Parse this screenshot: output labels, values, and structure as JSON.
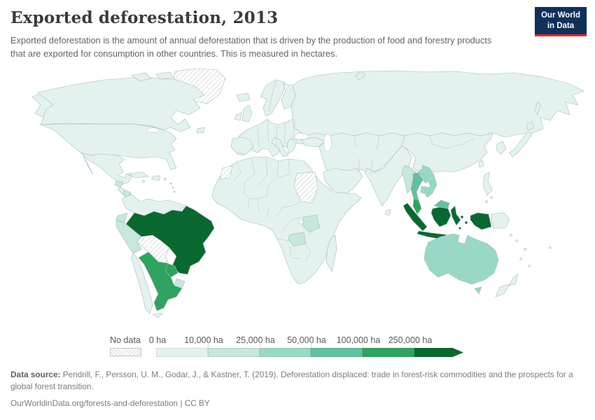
{
  "header": {
    "title": "Exported deforestation, 2013",
    "subtitle": "Exported deforestation is the amount of annual deforestation that is driven by the production of food and forestry products that are exported for consumption in other countries. This is measured in hectares.",
    "logo": {
      "line1": "Our World",
      "line2": "in Data",
      "bg_color": "#10305a",
      "accent_color": "#e0282e"
    }
  },
  "chart_data": {
    "type": "choropleth_map",
    "title": "Exported deforestation, 2013",
    "unit": "hectares",
    "legend": {
      "no_data_label": "No data",
      "stops": [
        "0 ha",
        "10,000 ha",
        "25,000 ha",
        "50,000 ha",
        "100,000 ha",
        "250,000 ha"
      ],
      "bin_colors": [
        "#e3f2ee",
        "#c6e7db",
        "#99d8c6",
        "#62c0a0",
        "#2fa35f",
        "#09682f"
      ],
      "no_data_style": "diagonal-hatch"
    },
    "regions_by_bin": {
      "no_data": [
        "Greenland",
        "Western Sahara",
        "Sudan",
        "Bolivia",
        "French Guiana"
      ],
      "0_to_10000_ha": [
        "Canada",
        "United States",
        "Mexico",
        "Chile",
        "Colombia",
        "Venezuela",
        "Guyana",
        "Suriname",
        "Europe (most)",
        "Russia",
        "China",
        "India",
        "Japan",
        "Africa (most)",
        "Philippines",
        "Papua New Guinea",
        "New Zealand"
      ],
      "10000_to_25000_ha": [
        "Guatemala",
        "Nicaragua",
        "Ecuador",
        "Peru",
        "Uruguay",
        "Tanzania",
        "Zambia",
        "Myanmar"
      ],
      "25000_to_50000_ha": [
        "Australia",
        "Vietnam",
        "Laos",
        "Cambodia"
      ],
      "50000_to_100000_ha": [
        "Thailand",
        "Malaysia (Borneo)"
      ],
      "100000_to_250000_ha": [
        "Argentina",
        "Paraguay",
        "Malaysia (Peninsular)"
      ],
      "over_250000_ha": [
        "Brazil",
        "Indonesia"
      ]
    }
  },
  "map": {
    "border_color": "#a9b9c0",
    "ocean_color": "#ffffff",
    "fills": {
      "greenland": 0,
      "canada": 1,
      "alaska": 1,
      "arctic-island": 1,
      "usa": 1,
      "mexico": 1,
      "baja": 1,
      "guatemala": 2,
      "central-america": 1,
      "nicaragua": 2,
      "cuba": 1,
      "hispaniola": 1,
      "colombia-venezuela": 1,
      "french-guiana": 0,
      "ecuador": 2,
      "peru": 2,
      "brazil": 6,
      "bolivia": 0,
      "paraguay": 5,
      "uruguay": 2,
      "argentina": 5,
      "chile": 1,
      "tierra-del-fuego": 1,
      "iceland": 1,
      "uk": 1,
      "ireland": 1,
      "scandinavia": 1,
      "finland": 1,
      "europe": 1,
      "iberia": 1,
      "italy": 1,
      "balkans": 1,
      "turkey": 1,
      "russia": 1,
      "central-asia": 1,
      "arabia": 1,
      "india": 1,
      "sri-lanka": 1,
      "china": 1,
      "korea": 1,
      "japan": 1,
      "hokkaido": 1,
      "sakhalin": 1,
      "taiwan": 1,
      "philippines": 1,
      "myanmar": 2,
      "thailand": 4,
      "laos": 3,
      "vietnam": 3,
      "cambodia": 3,
      "malaysia-peninsula": 5,
      "malaysia-borneo": 4,
      "sumatra": 6,
      "java": 6,
      "kalimantan": 6,
      "sulawesi": 6,
      "moluccas": 6,
      "lesser-sunda": 6,
      "west-papua": 6,
      "papua-new-guinea": 1,
      "africa": 1,
      "western-sahara": 0,
      "sudan": 0,
      "tanzania": 2,
      "zambia": 2,
      "madagascar": 1,
      "australia": 3,
      "tasmania": 3,
      "new-zealand-north": 1,
      "new-zealand-south": 1,
      "novaya-zemlya": 1,
      "newfoundland": 1,
      "small-island": 1
    }
  },
  "footer": {
    "source_label": "Data source:",
    "source_text": "Pendrill, F., Persson, U. M., Godar, J., & Kastner, T. (2019). Deforestation displaced: trade in forest-risk commodities and the prospects for a global forest transition.",
    "citation": "OurWorldinData.org/forests-and-deforestation | CC BY"
  }
}
